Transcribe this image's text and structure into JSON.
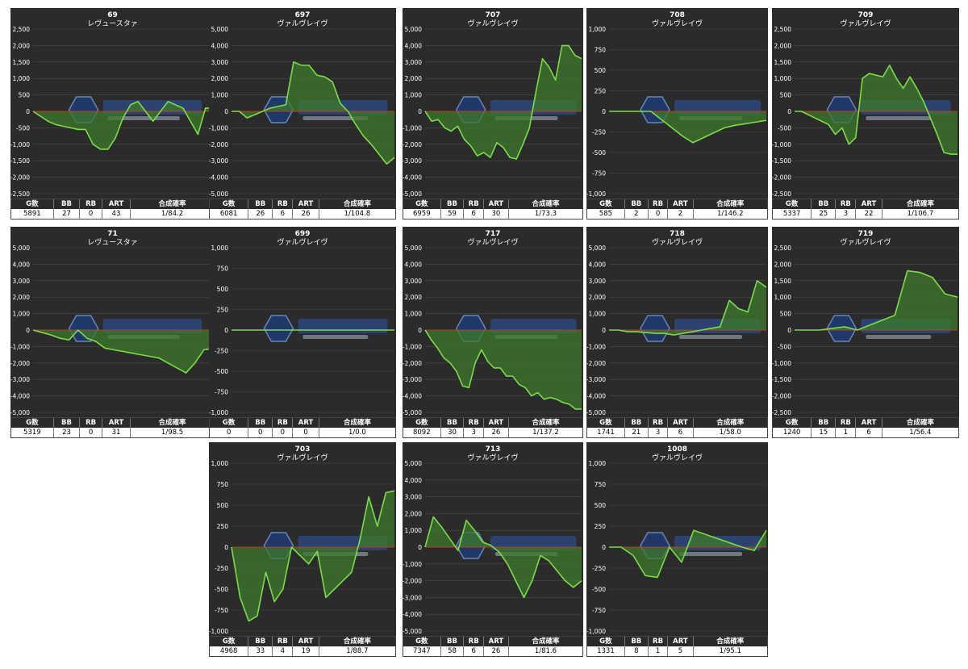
{
  "table_headers": [
    "G数",
    "BB",
    "RB",
    "ART",
    "合成確率"
  ],
  "colors": {
    "background": "#2b2b2b",
    "line": "#7ddc4c",
    "fill": "#3e7a2a",
    "zero_line": "#c0392b",
    "grid": "#4a4a4a",
    "text": "#ffffff"
  },
  "chart_data": [
    {
      "type": "area",
      "title": "69",
      "subtitle": "レヴュースタァ",
      "ylim": [
        -2500,
        2500
      ],
      "ticks": [
        "2,500",
        "2,000",
        "1,500",
        "1,000",
        "500",
        "0",
        "-500",
        "-1,000",
        "-1,500",
        "-2,000",
        "-2,500"
      ],
      "y": [
        0,
        -150,
        -300,
        -400,
        -450,
        -500,
        -550,
        -550,
        -1000,
        -1150,
        -1150,
        -800,
        -200,
        200,
        300,
        0,
        -300,
        0,
        300,
        200,
        100,
        -300,
        -700,
        100,
        100
      ],
      "stats": [
        "5891",
        "27",
        "0",
        "43",
        "1/84.2"
      ]
    },
    {
      "type": "area",
      "title": "697",
      "subtitle": "ヴァルヴレイヴ",
      "ylim": [
        -5000,
        5000
      ],
      "ticks": [
        "5,000",
        "4,000",
        "3,000",
        "2,000",
        "1,000",
        "0",
        "-1,000",
        "-2,000",
        "-3,000",
        "-4,000",
        "-5,000"
      ],
      "y": [
        0,
        0,
        -400,
        -200,
        0,
        200,
        300,
        400,
        3000,
        2800,
        2800,
        2200,
        2100,
        1800,
        500,
        0,
        -800,
        -1500,
        -2000,
        -2600,
        -3200,
        -2800
      ],
      "stats": [
        "6081",
        "26",
        "6",
        "26",
        "1/104.8"
      ]
    },
    {
      "type": "area",
      "title": "707",
      "subtitle": "ヴァルヴレイヴ",
      "ylim": [
        -5000,
        5000
      ],
      "ticks": [
        "5,000",
        "4,000",
        "3,000",
        "2,000",
        "1,000",
        "0",
        "-1,000",
        "-2,000",
        "-3,000",
        "-4,000",
        "-5,000"
      ],
      "y": [
        0,
        -600,
        -500,
        -1000,
        -1200,
        -900,
        -1700,
        -2100,
        -2700,
        -2500,
        -2800,
        -1900,
        -2200,
        -2800,
        -2900,
        -2000,
        -1000,
        1200,
        3200,
        2700,
        1900,
        4000,
        4000,
        3400,
        3200
      ],
      "stats": [
        "6959",
        "59",
        "6",
        "30",
        "1/73.3"
      ]
    },
    {
      "type": "area",
      "title": "708",
      "subtitle": "ヴァルヴレイヴ",
      "ylim": [
        -1000,
        1000
      ],
      "ticks": [
        "1,000",
        "750",
        "500",
        "250",
        "0",
        "-250",
        "-500",
        "-750",
        "-1,000"
      ],
      "y": [
        0,
        0,
        0,
        0,
        0,
        -100,
        -200,
        -300,
        -380,
        -320,
        -260,
        -200,
        -170,
        -150,
        -130,
        -110
      ],
      "stats": [
        "585",
        "2",
        "0",
        "2",
        "1/146.2"
      ]
    },
    {
      "type": "area",
      "title": "709",
      "subtitle": "ヴァルヴレイヴ",
      "ylim": [
        -2500,
        2500
      ],
      "ticks": [
        "2,500",
        "2,000",
        "1,500",
        "1,000",
        "500",
        "0",
        "-500",
        "-1,000",
        "-1,500",
        "-2,000",
        "-2,500"
      ],
      "y": [
        0,
        0,
        -100,
        -200,
        -300,
        -400,
        -700,
        -500,
        -1000,
        -800,
        1000,
        1150,
        1100,
        1050,
        1400,
        1000,
        700,
        1050,
        700,
        300,
        -200,
        -700,
        -1250,
        -1300,
        -1300
      ],
      "stats": [
        "5337",
        "25",
        "3",
        "22",
        "1/106.7"
      ]
    },
    {
      "type": "area",
      "title": "71",
      "subtitle": "レヴュースタァ",
      "ylim": [
        -5000,
        5000
      ],
      "ticks": [
        "5,000",
        "4,000",
        "3,000",
        "2,000",
        "1,000",
        "0",
        "-1,000",
        "-2,000",
        "-3,000",
        "-4,000",
        "-5,000"
      ],
      "y": [
        0,
        -150,
        -300,
        -500,
        -600,
        0,
        -500,
        -700,
        -1100,
        -1200,
        -1300,
        -1400,
        -1500,
        -1600,
        -1700,
        -2000,
        -2300,
        -2600,
        -2000,
        -1200,
        -1100
      ],
      "stats": [
        "5319",
        "23",
        "0",
        "31",
        "1/98.5"
      ]
    },
    {
      "type": "area",
      "title": "699",
      "subtitle": "ヴァルヴレイヴ",
      "ylim": [
        -1000,
        1000
      ],
      "ticks": [
        "1,000",
        "750",
        "500",
        "250",
        "0",
        "-250",
        "-500",
        "-750",
        "-1,000"
      ],
      "y": [
        0,
        0,
        0,
        0,
        0,
        0,
        0,
        0,
        0,
        0
      ],
      "stats": [
        "0",
        "0",
        "0",
        "0",
        "1/0.0"
      ]
    },
    {
      "type": "area",
      "title": "717",
      "subtitle": "ヴァルヴレイヴ",
      "ylim": [
        -5000,
        5000
      ],
      "ticks": [
        "5,000",
        "4,000",
        "3,000",
        "2,000",
        "1,000",
        "0",
        "-1,000",
        "-2,000",
        "-3,000",
        "-4,000",
        "-5,000"
      ],
      "y": [
        0,
        -600,
        -1100,
        -1700,
        -2000,
        -2500,
        -3400,
        -3500,
        -2000,
        -1200,
        -1900,
        -2300,
        -2300,
        -2800,
        -2800,
        -3300,
        -3500,
        -4000,
        -3800,
        -4200,
        -4100,
        -4200,
        -4400,
        -4500,
        -4800,
        -4800
      ],
      "stats": [
        "8092",
        "30",
        "3",
        "26",
        "1/137.2"
      ]
    },
    {
      "type": "area",
      "title": "718",
      "subtitle": "ヴァルヴレイヴ",
      "ylim": [
        -5000,
        5000
      ],
      "ticks": [
        "5,000",
        "4,000",
        "3,000",
        "2,000",
        "1,000",
        "0",
        "-1,000",
        "-2,000",
        "-3,000",
        "-4,000",
        "-5,000"
      ],
      "y": [
        0,
        0,
        -100,
        -100,
        -150,
        -200,
        -200,
        -300,
        -200,
        -100,
        0,
        100,
        200,
        1800,
        1300,
        1100,
        3000,
        2600
      ],
      "stats": [
        "1741",
        "21",
        "3",
        "6",
        "1/58.0"
      ]
    },
    {
      "type": "area",
      "title": "719",
      "subtitle": "ヴァルヴレイヴ",
      "ylim": [
        -2500,
        2500
      ],
      "ticks": [
        "2,500",
        "2,000",
        "1,500",
        "1,000",
        "500",
        "0",
        "-500",
        "-1,000",
        "-1,500",
        "-2,000",
        "-2,500"
      ],
      "y": [
        0,
        0,
        0,
        50,
        100,
        0,
        150,
        300,
        450,
        1800,
        1750,
        1600,
        1100,
        1000
      ],
      "stats": [
        "1240",
        "15",
        "1",
        "6",
        "1/56.4"
      ]
    },
    {
      "type": "area",
      "title": "703",
      "subtitle": "ヴァルヴレイヴ",
      "ylim": [
        -1000,
        1000
      ],
      "ticks": [
        "1,000",
        "750",
        "500",
        "250",
        "0",
        "-250",
        "-500",
        "-750",
        "-1,000"
      ],
      "y": [
        0,
        -600,
        -880,
        -820,
        -300,
        -650,
        -500,
        0,
        -100,
        -200,
        -50,
        -600,
        -500,
        -400,
        -300,
        100,
        600,
        250,
        650,
        670
      ],
      "stats": [
        "4968",
        "33",
        "4",
        "19",
        "1/88.7"
      ]
    },
    {
      "type": "area",
      "title": "713",
      "subtitle": "ヴァルヴレイヴ",
      "ylim": [
        -5000,
        5000
      ],
      "ticks": [
        "5,000",
        "4,000",
        "3,000",
        "2,000",
        "1,000",
        "0",
        "-1,000",
        "-2,000",
        "-3,000",
        "-4,000",
        "-5,000"
      ],
      "y": [
        0,
        1800,
        1200,
        500,
        -200,
        1600,
        1000,
        300,
        100,
        -300,
        -1000,
        -2000,
        -3000,
        -2000,
        -500,
        -800,
        -1400,
        -2000,
        -2400,
        -2000
      ],
      "stats": [
        "7347",
        "58",
        "6",
        "26",
        "1/81.6"
      ]
    },
    {
      "type": "area",
      "title": "1008",
      "subtitle": "ヴァルヴレイヴ",
      "ylim": [
        -1000,
        1000
      ],
      "ticks": [
        "1,000",
        "750",
        "500",
        "250",
        "0",
        "-250",
        "-500",
        "-750",
        "-1,000"
      ],
      "y": [
        0,
        0,
        -100,
        -340,
        -360,
        0,
        -180,
        200,
        150,
        100,
        50,
        0,
        -40,
        200
      ],
      "stats": [
        "1331",
        "8",
        "1",
        "5",
        "1/95.1"
      ]
    }
  ]
}
